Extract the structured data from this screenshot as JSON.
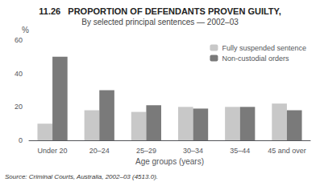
{
  "chart_data": {
    "type": "bar",
    "title": "11.26   PROPORTION OF DEFENDANTS PROVEN GUILTY,",
    "subtitle": "By selected principal sentences — 2002–03",
    "source": "Source: Criminal Courts, Australia, 2002–03 (4513.0).",
    "xlabel": "Age groups (years)",
    "ylabel": "%",
    "categories": [
      "Under 20",
      "20–24",
      "25–29",
      "30–34",
      "35–44",
      "45 and over"
    ],
    "series": [
      {
        "name": "Fully suspended sentence",
        "color": "#c8c8c8",
        "values": [
          10,
          18,
          17,
          20,
          20,
          22
        ]
      },
      {
        "name": "Non-custodial orders",
        "color": "#7a7a7a",
        "values": [
          50,
          30,
          21,
          19,
          20,
          18
        ]
      }
    ],
    "ylim": [
      0,
      60
    ],
    "yticks": [
      0,
      20,
      40,
      60
    ],
    "grid": false,
    "legend": "upper right"
  }
}
